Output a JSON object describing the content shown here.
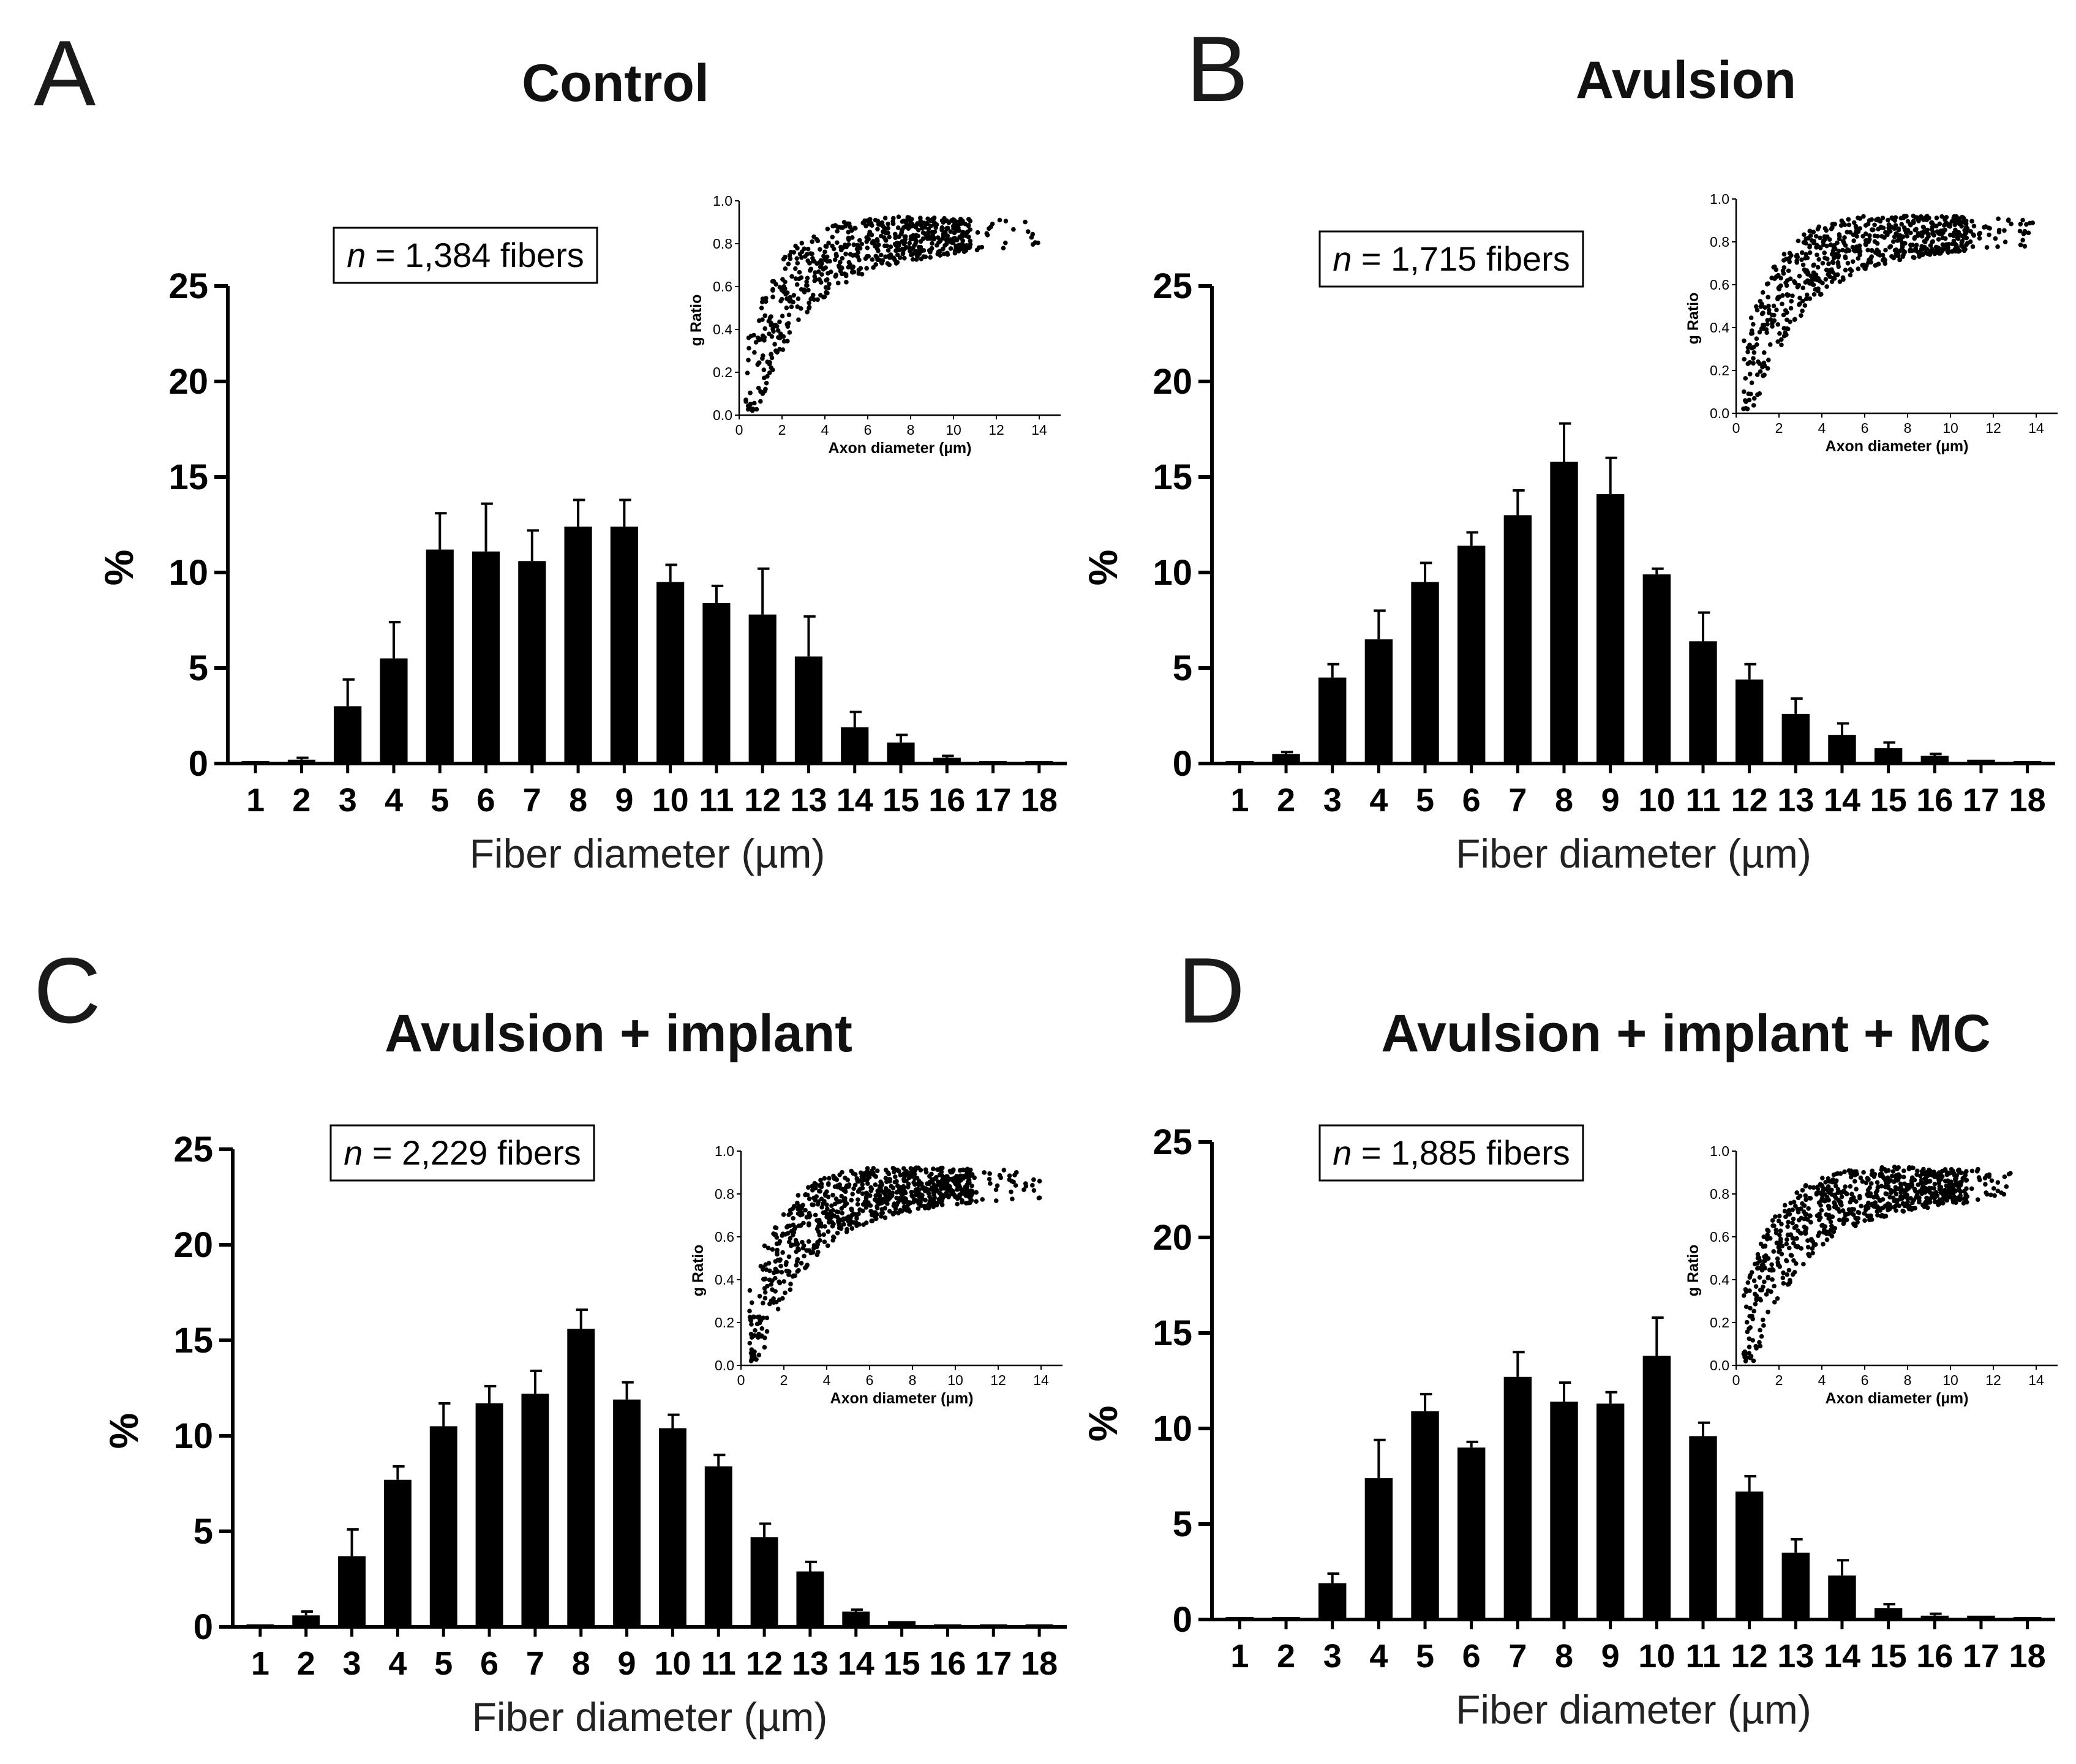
{
  "figure": {
    "background": "#ffffff",
    "bar_color": "#000000"
  },
  "chart_data": [
    {
      "type": "bar",
      "panel": "A",
      "title": "Control",
      "n_prefix": "n",
      "n_suffix": " = 1,384 fibers",
      "xlabel": "Fiber diameter (µm)",
      "ylabel": "%",
      "ylim": [
        0,
        25
      ],
      "yticks": [
        "0",
        "5",
        "10",
        "15",
        "20",
        "25"
      ],
      "categories": [
        "1",
        "2",
        "3",
        "4",
        "5",
        "6",
        "7",
        "8",
        "9",
        "10",
        "11",
        "12",
        "13",
        "14",
        "15",
        "16",
        "17",
        "18"
      ],
      "values": [
        0.05,
        0.2,
        3.0,
        5.5,
        11.2,
        11.1,
        10.6,
        12.4,
        12.4,
        9.5,
        8.4,
        7.8,
        5.6,
        1.9,
        1.1,
        0.3,
        0.1,
        0.1
      ],
      "errors": [
        0,
        0.1,
        1.4,
        1.9,
        1.9,
        2.5,
        1.6,
        1.4,
        1.4,
        0.9,
        0.9,
        2.4,
        2.1,
        0.8,
        0.4,
        0.1,
        0,
        0.05
      ],
      "inset": {
        "type": "scatter",
        "xlabel": "Axon diameter (µm)",
        "ylabel": "g Ratio",
        "xlim": [
          0,
          15
        ],
        "ylim": [
          0,
          1
        ],
        "xticks": [
          "0",
          "2",
          "4",
          "6",
          "8",
          "10",
          "12",
          "14"
        ],
        "yticks": [
          "0.0",
          "0.2",
          "0.4",
          "0.6",
          "0.8",
          "1.0"
        ],
        "n_points": 650,
        "x_max": 14.2,
        "seed": 11
      }
    },
    {
      "type": "bar",
      "panel": "B",
      "title": "Avulsion",
      "n_prefix": "n",
      "n_suffix": " = 1,715 fibers",
      "xlabel": "Fiber diameter (µm)",
      "ylabel": "%",
      "ylim": [
        0,
        25
      ],
      "yticks": [
        "0",
        "5",
        "10",
        "15",
        "20",
        "25"
      ],
      "categories": [
        "1",
        "2",
        "3",
        "4",
        "5",
        "6",
        "7",
        "8",
        "9",
        "10",
        "11",
        "12",
        "13",
        "14",
        "15",
        "16",
        "17",
        "18"
      ],
      "values": [
        0.05,
        0.5,
        4.5,
        6.5,
        9.5,
        11.4,
        13.0,
        15.8,
        14.1,
        9.9,
        6.4,
        4.4,
        2.6,
        1.5,
        0.8,
        0.4,
        0.2,
        0.1
      ],
      "errors": [
        0,
        0.1,
        0.7,
        1.5,
        1.0,
        0.7,
        1.3,
        2.0,
        1.9,
        0.3,
        1.5,
        0.8,
        0.8,
        0.6,
        0.3,
        0.1,
        0,
        0
      ],
      "inset": {
        "type": "scatter",
        "xlabel": "Axon diameter (µm)",
        "ylabel": "g Ratio",
        "xlim": [
          0,
          15
        ],
        "ylim": [
          0,
          1
        ],
        "xticks": [
          "0",
          "2",
          "4",
          "6",
          "8",
          "10",
          "12",
          "14"
        ],
        "yticks": [
          "0.0",
          "0.2",
          "0.4",
          "0.6",
          "0.8",
          "1.0"
        ],
        "n_points": 700,
        "x_max": 13.9,
        "seed": 23
      }
    },
    {
      "type": "bar",
      "panel": "C",
      "title": "Avulsion + implant",
      "n_prefix": "n",
      "n_suffix": " = 2,229 fibers",
      "xlabel": "Fiber diameter (µm)",
      "ylabel": "%",
      "ylim": [
        0,
        25
      ],
      "yticks": [
        "0",
        "5",
        "10",
        "15",
        "20",
        "25"
      ],
      "categories": [
        "1",
        "2",
        "3",
        "4",
        "5",
        "6",
        "7",
        "8",
        "9",
        "10",
        "11",
        "12",
        "13",
        "14",
        "15",
        "16",
        "17",
        "18"
      ],
      "values": [
        0.05,
        0.6,
        3.7,
        7.7,
        10.5,
        11.7,
        12.2,
        15.6,
        11.9,
        10.4,
        8.4,
        4.7,
        2.9,
        0.8,
        0.3,
        0.05,
        0.05,
        0.05
      ],
      "errors": [
        0,
        0.2,
        1.4,
        0.7,
        1.2,
        0.9,
        1.2,
        1.0,
        0.9,
        0.7,
        0.6,
        0.7,
        0.5,
        0.1,
        0.05,
        0,
        0,
        0
      ],
      "inset": {
        "type": "scatter",
        "xlabel": "Axon diameter (µm)",
        "ylabel": "g Ratio",
        "xlim": [
          0,
          15
        ],
        "ylim": [
          0,
          1
        ],
        "xticks": [
          "0",
          "2",
          "4",
          "6",
          "8",
          "10",
          "12",
          "14"
        ],
        "yticks": [
          "0.0",
          "0.2",
          "0.4",
          "0.6",
          "0.8",
          "1.0"
        ],
        "n_points": 850,
        "x_max": 14.0,
        "seed": 37
      }
    },
    {
      "type": "bar",
      "panel": "D",
      "title": "Avulsion + implant + MC",
      "n_prefix": "n",
      "n_suffix": " = 1,885 fibers",
      "xlabel": "Fiber diameter (µm)",
      "ylabel": "%",
      "ylim": [
        0,
        25
      ],
      "yticks": [
        "0",
        "5",
        "10",
        "15",
        "20",
        "25"
      ],
      "categories": [
        "1",
        "2",
        "3",
        "4",
        "5",
        "6",
        "7",
        "8",
        "9",
        "10",
        "11",
        "12",
        "13",
        "14",
        "15",
        "16",
        "17",
        "18"
      ],
      "values": [
        0.05,
        0.1,
        1.9,
        7.4,
        10.9,
        9.0,
        12.7,
        11.4,
        11.3,
        13.8,
        9.6,
        6.7,
        3.5,
        2.3,
        0.6,
        0.2,
        0.2,
        0.1
      ],
      "errors": [
        0,
        0.05,
        0.5,
        2.0,
        0.9,
        0.3,
        1.3,
        1.0,
        0.6,
        2.0,
        0.7,
        0.8,
        0.7,
        0.8,
        0.2,
        0.1,
        0.05,
        0
      ],
      "inset": {
        "type": "scatter",
        "xlabel": "Axon diameter (µm)",
        "ylabel": "g Ratio",
        "xlim": [
          0,
          15
        ],
        "ylim": [
          0,
          1
        ],
        "xticks": [
          "0",
          "2",
          "4",
          "6",
          "8",
          "10",
          "12",
          "14"
        ],
        "yticks": [
          "0.0",
          "0.2",
          "0.4",
          "0.6",
          "0.8",
          "1.0"
        ],
        "n_points": 780,
        "x_max": 12.9,
        "seed": 53
      }
    }
  ]
}
